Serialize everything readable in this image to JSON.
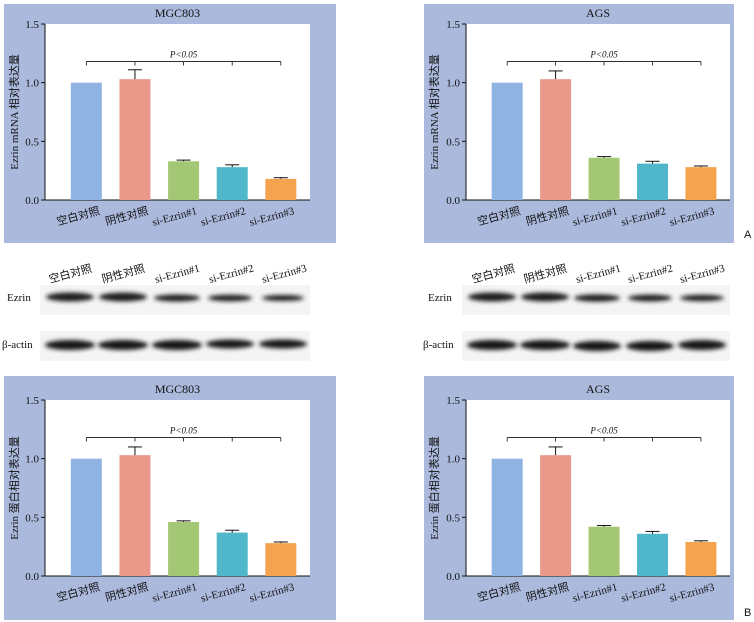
{
  "panel_letters": {
    "a": "A",
    "b": "B"
  },
  "blots": [
    {
      "lanes": [
        "空白对照",
        "阴性对照",
        "si-Ezrin#1",
        "si-Ezrin#2",
        "si-Ezrin#3"
      ],
      "rows": [
        "Ezrin",
        "β-actin"
      ]
    },
    {
      "lanes": [
        "空白对照",
        "阴性对照",
        "si-Ezrin#1",
        "si-Ezrin#2",
        "si-Ezrin#3"
      ],
      "rows": [
        "Ezrin",
        "β-actin"
      ]
    }
  ],
  "colors": {
    "panel_bg": "#aab9dc",
    "bar_colors": [
      "#8fb4e3",
      "#e8998a",
      "#a3c774",
      "#4fb7c9",
      "#f5a34f"
    ]
  },
  "chart_data": [
    {
      "type": "bar",
      "title": "MGC803",
      "ylabel": "Ezrin mRNA 相对表达量",
      "categories": [
        "空白对照",
        "阴性对照",
        "si-Ezrin#1",
        "si-Ezrin#2",
        "si-Ezrin#3"
      ],
      "values": [
        1.0,
        1.03,
        0.33,
        0.28,
        0.18
      ],
      "errors": [
        0,
        0.08,
        0.01,
        0.02,
        0.01
      ],
      "ylim": [
        0,
        1.5
      ],
      "yticks": [
        "0.0",
        "0.5",
        "1.0",
        "1.5"
      ],
      "significance": "P<0.05"
    },
    {
      "type": "bar",
      "title": "AGS",
      "ylabel": "Ezrin mRNA 相对表达量",
      "categories": [
        "空白对照",
        "阴性对照",
        "si-Ezrin#1",
        "si-Ezrin#2",
        "si-Ezrin#3"
      ],
      "values": [
        1.0,
        1.03,
        0.36,
        0.31,
        0.28
      ],
      "errors": [
        0,
        0.07,
        0.01,
        0.02,
        0.01
      ],
      "ylim": [
        0,
        1.5
      ],
      "yticks": [
        "0.0",
        "0.5",
        "1.0",
        "1.5"
      ],
      "significance": "P<0.05"
    },
    {
      "type": "bar",
      "title": "MGC803",
      "ylabel": "Ezrin 蛋白相对表达量",
      "categories": [
        "空白对照",
        "阴性对照",
        "si-Ezrin#1",
        "si-Ezrin#2",
        "si-Ezrin#3"
      ],
      "values": [
        1.0,
        1.03,
        0.46,
        0.37,
        0.28
      ],
      "errors": [
        0,
        0.07,
        0.01,
        0.02,
        0.01
      ],
      "ylim": [
        0,
        1.5
      ],
      "yticks": [
        "0.0",
        "0.5",
        "1.0",
        "1.5"
      ],
      "significance": "P<0.05"
    },
    {
      "type": "bar",
      "title": "AGS",
      "ylabel": "Ezrin 蛋白相对表达量",
      "categories": [
        "空白对照",
        "阴性对照",
        "si-Ezrin#1",
        "si-Ezrin#2",
        "si-Ezrin#3"
      ],
      "values": [
        1.0,
        1.03,
        0.42,
        0.36,
        0.29
      ],
      "errors": [
        0,
        0.07,
        0.01,
        0.02,
        0.01
      ],
      "ylim": [
        0,
        1.5
      ],
      "yticks": [
        "0.0",
        "0.5",
        "1.0",
        "1.5"
      ],
      "significance": "P<0.05"
    }
  ]
}
